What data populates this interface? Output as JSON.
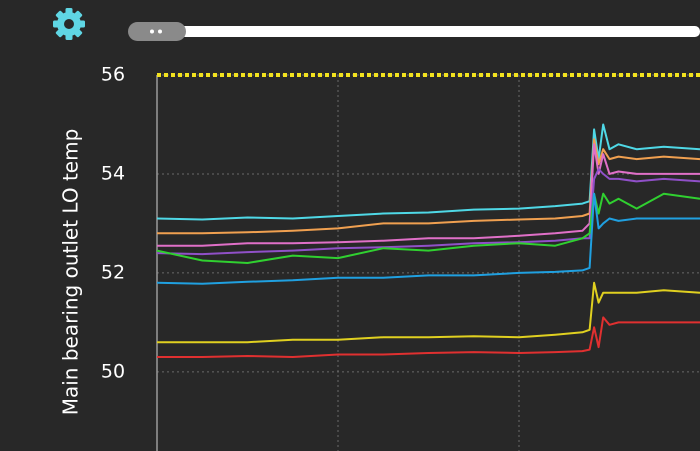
{
  "chart_data": {
    "type": "line",
    "y_label": "Main bearing outlet LO temp",
    "x": [
      0,
      5,
      10,
      15,
      20,
      25,
      30,
      35,
      40,
      44,
      47,
      47.8,
      48.3,
      48.8,
      49.3,
      50,
      51,
      53,
      56,
      60
    ],
    "xlim": [
      0,
      60
    ],
    "xticks": [
      20,
      40
    ],
    "ylim": [
      48.4,
      56
    ],
    "yticks": [
      50,
      52,
      54,
      56
    ],
    "grid": true,
    "threshold": {
      "value": 56,
      "color": "#f2e21e"
    },
    "series": [
      {
        "color": "#4fd8e6",
        "values": [
          53.1,
          53.08,
          53.12,
          53.1,
          53.15,
          53.2,
          53.22,
          53.28,
          53.3,
          53.35,
          53.4,
          53.45,
          54.9,
          54.3,
          55.0,
          54.5,
          54.6,
          54.5,
          54.55,
          54.5
        ]
      },
      {
        "color": "#f0a050",
        "values": [
          52.8,
          52.8,
          52.82,
          52.85,
          52.9,
          53.0,
          53.0,
          53.05,
          53.08,
          53.1,
          53.15,
          53.2,
          54.7,
          54.2,
          54.5,
          54.3,
          54.35,
          54.3,
          54.35,
          54.3
        ]
      },
      {
        "color": "#e070c8",
        "values": [
          52.55,
          52.55,
          52.6,
          52.6,
          52.62,
          52.65,
          52.7,
          52.7,
          52.75,
          52.8,
          52.85,
          53.0,
          54.6,
          54.0,
          54.4,
          54.0,
          54.05,
          54.0,
          54.0,
          54.0
        ]
      },
      {
        "color": "#9050c8",
        "values": [
          52.4,
          52.38,
          52.42,
          52.45,
          52.5,
          52.52,
          52.55,
          52.6,
          52.62,
          52.65,
          52.7,
          52.7,
          53.9,
          54.1,
          54.0,
          53.9,
          53.9,
          53.85,
          53.9,
          53.85
        ]
      },
      {
        "color": "#30d030",
        "values": [
          52.45,
          52.25,
          52.2,
          52.35,
          52.3,
          52.5,
          52.45,
          52.55,
          52.6,
          52.55,
          52.7,
          52.8,
          53.6,
          53.2,
          53.6,
          53.4,
          53.5,
          53.3,
          53.6,
          53.5
        ]
      },
      {
        "color": "#20a0e0",
        "values": [
          51.8,
          51.78,
          51.82,
          51.85,
          51.9,
          51.9,
          51.95,
          51.95,
          52.0,
          52.02,
          52.05,
          52.1,
          53.6,
          52.9,
          53.0,
          53.1,
          53.05,
          53.1,
          53.1,
          53.1
        ]
      },
      {
        "color": "#e0d020",
        "values": [
          50.6,
          50.6,
          50.6,
          50.65,
          50.65,
          50.7,
          50.7,
          50.72,
          50.7,
          50.75,
          50.8,
          50.85,
          51.8,
          51.4,
          51.6,
          51.6,
          51.6,
          51.6,
          51.65,
          51.6
        ]
      },
      {
        "color": "#e03030",
        "values": [
          50.3,
          50.3,
          50.32,
          50.3,
          50.35,
          50.35,
          50.38,
          50.4,
          50.38,
          50.4,
          50.42,
          50.45,
          50.9,
          50.5,
          51.1,
          50.95,
          51.0,
          51.0,
          51.0,
          51.0
        ]
      }
    ]
  }
}
